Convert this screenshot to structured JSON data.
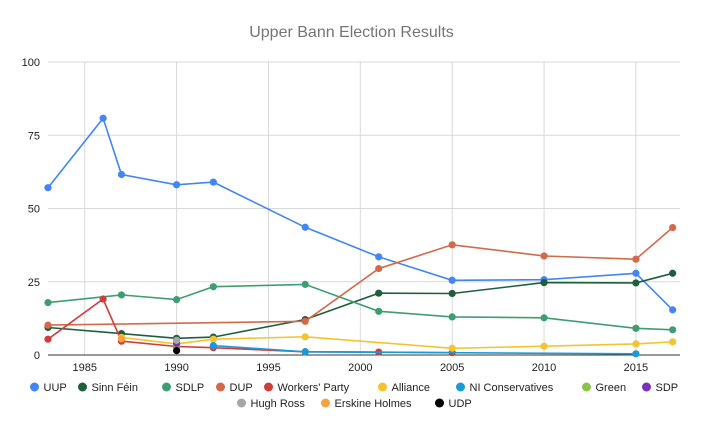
{
  "chart_data": {
    "type": "line",
    "title": "Upper Bann Election Results",
    "xlabel": "",
    "ylabel": "",
    "xlim": [
      1983,
      2017.4
    ],
    "ylim": [
      0,
      100
    ],
    "x_ticks": [
      1985,
      1990,
      1995,
      2000,
      2005,
      2010,
      2015
    ],
    "y_ticks": [
      0,
      25,
      50,
      75,
      100
    ],
    "grid": true,
    "legend_position": "bottom",
    "series": [
      {
        "name": "UUP",
        "color": "#4285F4",
        "points": [
          [
            1983,
            57.1
          ],
          [
            1986,
            80.8
          ],
          [
            1987,
            61.6
          ],
          [
            1990,
            58.1
          ],
          [
            1992,
            59.0
          ],
          [
            1997,
            43.6
          ],
          [
            2001,
            33.5
          ],
          [
            2005,
            25.5
          ],
          [
            2010,
            25.7
          ],
          [
            2015,
            27.9
          ],
          [
            2017,
            15.4
          ]
        ]
      },
      {
        "name": "Sinn Féin",
        "color": "#1F5E3C",
        "points": [
          [
            1983,
            9.4
          ],
          [
            1987,
            7.3
          ],
          [
            1990,
            5.7
          ],
          [
            1992,
            6.1
          ],
          [
            1997,
            12.1
          ],
          [
            2001,
            21.1
          ],
          [
            2005,
            21.0
          ],
          [
            2010,
            24.7
          ],
          [
            2015,
            24.6
          ],
          [
            2017,
            27.9
          ]
        ]
      },
      {
        "name": "SDLP",
        "color": "#3E9E73",
        "points": [
          [
            1983,
            17.9
          ],
          [
            1987,
            20.5
          ],
          [
            1990,
            18.9
          ],
          [
            1992,
            23.3
          ],
          [
            1997,
            24.1
          ],
          [
            2001,
            14.9
          ],
          [
            2005,
            13.0
          ],
          [
            2010,
            12.7
          ],
          [
            2015,
            9.1
          ],
          [
            2017,
            8.6
          ]
        ]
      },
      {
        "name": "DUP",
        "color": "#D4694A",
        "points": [
          [
            1983,
            10.2
          ],
          [
            1997,
            11.5
          ],
          [
            2001,
            29.5
          ],
          [
            2005,
            37.6
          ],
          [
            2010,
            33.8
          ],
          [
            2015,
            32.7
          ],
          [
            2017,
            43.5
          ]
        ]
      },
      {
        "name": "Workers' Party",
        "color": "#D13C3C",
        "points": [
          [
            1983,
            5.4
          ],
          [
            1986,
            19.1
          ],
          [
            1987,
            4.7
          ],
          [
            1990,
            2.9
          ],
          [
            1992,
            2.5
          ],
          [
            1997,
            1.1
          ],
          [
            2001,
            1.0
          ],
          [
            2005,
            0.8
          ]
        ]
      },
      {
        "name": "Alliance",
        "color": "#F4C430",
        "points": [
          [
            1987,
            6.0
          ],
          [
            1990,
            3.8
          ],
          [
            1992,
            5.4
          ],
          [
            1997,
            6.2
          ],
          [
            2005,
            2.3
          ],
          [
            2010,
            3.0
          ],
          [
            2015,
            3.8
          ],
          [
            2017,
            4.5
          ]
        ]
      },
      {
        "name": "NI Conservatives",
        "color": "#1A9BD7",
        "points": [
          [
            1992,
            3.2
          ],
          [
            1997,
            1.1
          ],
          [
            2015,
            0.4
          ]
        ]
      },
      {
        "name": "Green",
        "color": "#8BC34A",
        "points": [
          [
            1990,
            3.5
          ]
        ]
      },
      {
        "name": "SDP",
        "color": "#7B2FBE",
        "points": [
          [
            1990,
            4.0
          ]
        ]
      },
      {
        "name": "Hugh Ross",
        "color": "#A6A6A6",
        "points": [
          [
            1990,
            5.0
          ]
        ]
      },
      {
        "name": "Erskine Holmes",
        "color": "#F4A340",
        "points": [
          [
            1987,
            5.5
          ]
        ]
      },
      {
        "name": "UDP",
        "color": "#000000",
        "points": [
          [
            1990,
            1.5
          ]
        ]
      }
    ]
  }
}
